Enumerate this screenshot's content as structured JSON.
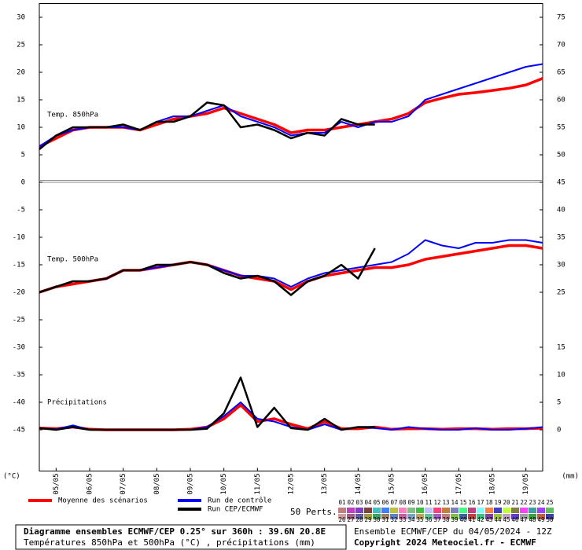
{
  "chart_data": [
    {
      "type": "line",
      "label": "Temp. 850hPa",
      "x": [
        0,
        12,
        24,
        36,
        48,
        60,
        72,
        84,
        96,
        108,
        120,
        132,
        144,
        156,
        168,
        180,
        192,
        204,
        216,
        228,
        240,
        252,
        264,
        276,
        288,
        300,
        312,
        324,
        336,
        348,
        360
      ],
      "xlim": [
        0,
        360
      ],
      "xticks": [
        {
          "value": 12,
          "label": "05/05"
        },
        {
          "value": 36,
          "label": "06/05"
        },
        {
          "value": 60,
          "label": "07/05"
        },
        {
          "value": 84,
          "label": "08/05"
        },
        {
          "value": 108,
          "label": "09/05"
        },
        {
          "value": 132,
          "label": "10/05"
        },
        {
          "value": 156,
          "label": "11/05"
        },
        {
          "value": 180,
          "label": "12/05"
        },
        {
          "value": 204,
          "label": "13/05"
        },
        {
          "value": 228,
          "label": "14/05"
        },
        {
          "value": 252,
          "label": "15/05"
        },
        {
          "value": 276,
          "label": "16/05"
        },
        {
          "value": 300,
          "label": "17/05"
        },
        {
          "value": 324,
          "label": "18/05"
        },
        {
          "value": 348,
          "label": "19/05"
        }
      ],
      "ylim": [
        -52.5,
        32.5
      ],
      "yticks": [
        30,
        25,
        20,
        15,
        10,
        5,
        0,
        -5,
        -10,
        -15,
        -20,
        -25,
        -30,
        -35,
        -40,
        -45
      ],
      "y2lim": [
        -7.5,
        77.5
      ],
      "y2ticks": [
        75,
        70,
        65,
        60,
        55,
        50,
        45,
        40,
        35,
        30,
        25,
        15,
        10,
        5,
        0
      ],
      "ylabel": "(°C)",
      "y2label": "(mm)",
      "series": [
        {
          "name": "Moyenne des scénarios",
          "color": "#ff0000",
          "values": [
            6.5,
            8,
            9.5,
            10,
            10,
            10,
            9.5,
            10.5,
            11.5,
            12,
            12.5,
            13.5,
            12.5,
            11.5,
            10.5,
            9,
            9.5,
            9.5,
            10,
            10.5,
            11,
            11.5,
            12.5,
            14.5,
            15.3,
            16,
            16.3,
            16.7,
            17.1,
            17.7,
            18.9
          ]
        },
        {
          "name": "Run de contrôle",
          "color": "#0000ff",
          "values": [
            6.5,
            8.5,
            9.5,
            10,
            10,
            10,
            9.5,
            11,
            12,
            12,
            13,
            14,
            12,
            11,
            10,
            8.5,
            9,
            9,
            11,
            10,
            11,
            11,
            12,
            15,
            16,
            17,
            18,
            19,
            20,
            21,
            21.5
          ]
        },
        {
          "name": "Run CEP/ECMWF",
          "color": "#000000",
          "values": [
            6,
            8.5,
            10,
            10,
            10,
            10.5,
            9.5,
            11,
            11,
            12,
            14.5,
            14,
            10,
            10.5,
            9.5,
            8,
            9,
            8.5,
            11.5,
            10.5,
            10.5,
            null,
            null,
            null,
            null,
            null,
            null,
            null,
            null,
            null,
            null
          ]
        }
      ],
      "perts_label": "50 Perts.",
      "perts": [
        "01",
        "02",
        "03",
        "04",
        "05",
        "06",
        "07",
        "08",
        "09",
        "10",
        "11",
        "12",
        "13",
        "14",
        "15",
        "16",
        "17",
        "18",
        "19",
        "20",
        "21",
        "22",
        "23",
        "24",
        "25",
        "26",
        "27",
        "28",
        "29",
        "30",
        "31",
        "32",
        "33",
        "34",
        "35",
        "36",
        "37",
        "38",
        "39",
        "40",
        "41",
        "42",
        "43",
        "44",
        "45",
        "46",
        "47",
        "48",
        "49",
        "50"
      ],
      "pert_colors": [
        "#c08080",
        "#c040c0",
        "#8040c0",
        "#804040",
        "#40c0c0",
        "#4080ff",
        "#c0c040",
        "#ff80c0",
        "#80c080",
        "#40c040",
        "#c0c0ff",
        "#ff4080",
        "#c08040",
        "#8080c0",
        "#40ff80",
        "#c04080",
        "#80ffff",
        "#ff8040",
        "#4040c0",
        "#c0ff40",
        "#808040",
        "#ff40ff",
        "#40a0a0",
        "#a040ff",
        "#60c060",
        "#d0a0a0",
        "#a06080",
        "#6060a0",
        "#a0a040",
        "#40a060",
        "#a08060",
        "#6080c0",
        "#c060a0",
        "#80a0c0",
        "#c0a060",
        "#60c0a0",
        "#a060c0",
        "#c08080",
        "#80c040",
        "#4060a0",
        "#c04040",
        "#40c080",
        "#8040a0",
        "#a0c040",
        "#c0a0c0",
        "#6040c0",
        "#a0a0a0",
        "#40a040",
        "#c06040",
        "#4040a0"
      ],
      "footer_title": "Diagramme ensembles ECMWF/CEP 0.25° sur 360h : 39.6N 20.8E",
      "footer_subtitle": "Températures 850hPa et 500hPa (°C) , précipitations (mm)",
      "run_info": "Ensemble ECMWF/CEP du 04/05/2024 - 12Z",
      "copyright": "Copyright 2024 Meteociel.fr - ECMWF"
    },
    {
      "type": "line",
      "label": "Temp. 500hPa",
      "series": [
        {
          "color": "#ff0000",
          "values": [
            -20,
            -19,
            -18.5,
            -18,
            -17.5,
            -16,
            -16,
            -15.5,
            -15,
            -14.5,
            -15,
            -16,
            -17,
            -17.5,
            -18,
            -19.5,
            -18,
            -17,
            -16.5,
            -16,
            -15.5,
            -15.5,
            -15,
            -14,
            -13.5,
            -13,
            -12.5,
            -12,
            -11.5,
            -11.5,
            -12
          ]
        },
        {
          "color": "#0000ff",
          "values": [
            -20,
            -19,
            -18,
            -18,
            -17.5,
            -16,
            -16,
            -15.5,
            -15,
            -14.5,
            -15,
            -16,
            -17,
            -17,
            -17.5,
            -19,
            -17.5,
            -16.5,
            -16,
            -15.5,
            -15,
            -14.5,
            -13,
            -10.5,
            -11.5,
            -12,
            -11,
            -11,
            -10.5,
            -10.5,
            -11
          ]
        },
        {
          "color": "#000000",
          "values": [
            -20,
            -19,
            -18,
            -18,
            -17.5,
            -16,
            -16,
            -15,
            -15,
            -14.5,
            -15,
            -16.5,
            -17.5,
            -17,
            -18,
            -20.5,
            -18,
            -17,
            -15,
            -17.5,
            -12,
            null,
            null,
            null,
            null,
            null,
            null,
            null,
            null,
            null,
            null
          ]
        }
      ]
    },
    {
      "type": "line",
      "label": "Précipitations",
      "series": [
        {
          "color": "#ff0000",
          "axis": "y2",
          "values": [
            0.3,
            0.2,
            0.5,
            0.1,
            0,
            0,
            0,
            0,
            0,
            0.1,
            0.5,
            2,
            4.5,
            1.5,
            2,
            1,
            0.2,
            1.5,
            0.2,
            0.2,
            0.5,
            0.1,
            0.2,
            0.2,
            0.1,
            0.2,
            0.2,
            0.1,
            0.2,
            0.2,
            0.3
          ]
        },
        {
          "color": "#0000ff",
          "axis": "y2",
          "values": [
            0.3,
            0.1,
            0.8,
            0,
            0,
            0,
            0,
            0,
            0,
            0,
            0.5,
            2.5,
            5,
            2,
            1.5,
            0.5,
            0,
            1,
            0,
            0.5,
            0.3,
            0,
            0.5,
            0.2,
            0,
            0,
            0.3,
            0,
            0,
            0.2,
            0.5
          ]
        },
        {
          "color": "#000000",
          "axis": "y2",
          "values": [
            0.3,
            0,
            0.5,
            0,
            0,
            0,
            0,
            0,
            0,
            0,
            0.2,
            3,
            9.5,
            0.5,
            4,
            0.3,
            0,
            2,
            0,
            0.5,
            0.5,
            null,
            null,
            null,
            null,
            null,
            null,
            null,
            null,
            null,
            null
          ]
        }
      ]
    }
  ]
}
